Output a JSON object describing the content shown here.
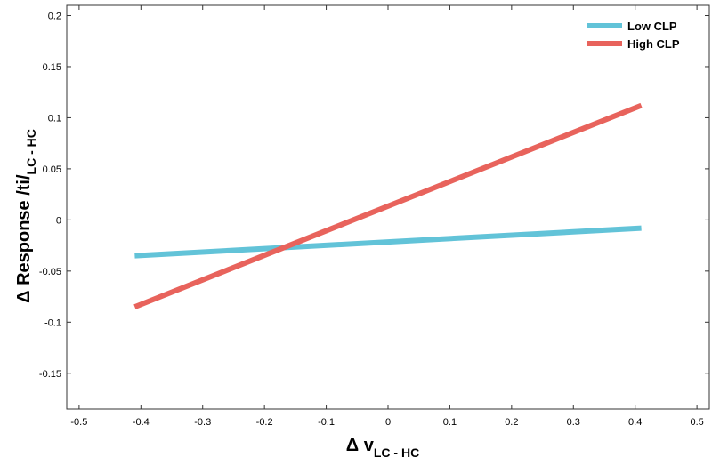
{
  "chart_data": {
    "type": "line",
    "title": "",
    "xlabel": {
      "main": "Δ v",
      "sub": "LC - HC"
    },
    "ylabel": {
      "main": "Δ Response /ti/",
      "sub": "LC - HC"
    },
    "xlim": [
      -0.52,
      0.52
    ],
    "ylim": [
      -0.185,
      0.21
    ],
    "xticks": [
      -0.5,
      -0.4,
      -0.3,
      -0.2,
      -0.1,
      0,
      0.1,
      0.2,
      0.3,
      0.4,
      0.5
    ],
    "xtick_labels": [
      "-0.5",
      "-0.4",
      "-0.3",
      "-0.2",
      "-0.1",
      "0",
      "0.1",
      "0.2",
      "0.3",
      "0.4",
      "0.5"
    ],
    "yticks": [
      -0.15,
      -0.1,
      -0.05,
      0,
      0.05,
      0.1,
      0.15,
      0.2
    ],
    "ytick_labels": [
      "-0.15",
      "-0.1",
      "-0.05",
      "0",
      "0.05",
      "0.1",
      "0.15",
      "0.2"
    ],
    "grid": false,
    "legend_position": "top-right",
    "series": [
      {
        "name": "Low CLP",
        "color": "#62c3d8",
        "x": [
          -0.41,
          0.41
        ],
        "y": [
          -0.035,
          -0.008
        ]
      },
      {
        "name": "High CLP",
        "color": "#e8635c",
        "x": [
          -0.41,
          0.41
        ],
        "y": [
          -0.085,
          0.112
        ]
      }
    ]
  }
}
